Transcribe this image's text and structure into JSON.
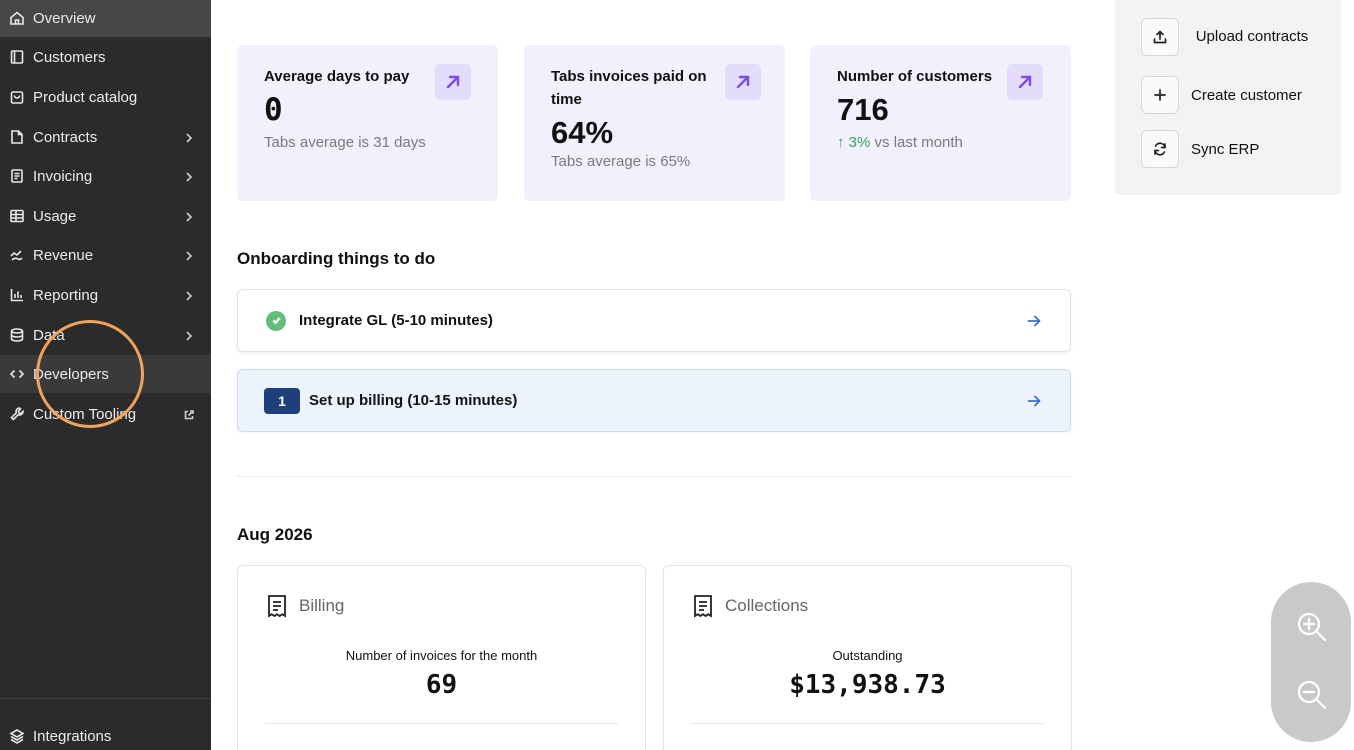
{
  "sidebar": {
    "items": [
      {
        "label": "Overview",
        "icon": "home-icon"
      },
      {
        "label": "Customers",
        "icon": "book-icon"
      },
      {
        "label": "Product catalog",
        "icon": "bag-icon"
      },
      {
        "label": "Contracts",
        "icon": "file-icon"
      },
      {
        "label": "Invoicing",
        "icon": "invoice-icon"
      },
      {
        "label": "Usage",
        "icon": "table-icon"
      },
      {
        "label": "Revenue",
        "icon": "revenue-icon"
      },
      {
        "label": "Reporting",
        "icon": "bar-chart-icon"
      },
      {
        "label": "Data",
        "icon": "database-icon"
      },
      {
        "label": "Developers",
        "icon": "code-icon"
      },
      {
        "label": "Custom Tooling",
        "icon": "wrench-icon"
      }
    ],
    "footer_item": {
      "label": "Integrations",
      "icon": "layers-icon"
    }
  },
  "stats": [
    {
      "title": "Average days to pay",
      "value": "0",
      "sub": "Tabs average is 31 days"
    },
    {
      "title": "Tabs invoices paid on time",
      "value": "64%",
      "sub": "Tabs average is 65%"
    },
    {
      "title": "Number of customers",
      "value": "716",
      "delta": "↑ 3%",
      "sub": " vs last month"
    }
  ],
  "actions": [
    {
      "label": "Upload contracts",
      "icon": "upload-icon"
    },
    {
      "label": "Create customer",
      "icon": "plus-icon"
    },
    {
      "label": "Sync ERP",
      "icon": "sync-icon"
    }
  ],
  "onboarding": {
    "title": "Onboarding things to do",
    "tasks": [
      {
        "label": "Integrate GL (5-10 minutes)",
        "status": "done"
      },
      {
        "step": "1",
        "label": "Set up billing (10-15 minutes)",
        "status": "current"
      }
    ]
  },
  "period": {
    "title": "Aug 2026",
    "billing": {
      "title": "Billing",
      "label": "Number of invoices for the month",
      "value": "69"
    },
    "collections": {
      "title": "Collections",
      "label": "Outstanding",
      "value": "$13,938.73"
    }
  },
  "colors": {
    "sidebar": "#2b2b2b",
    "stat_card": "#f2f0fc",
    "accent": "#7d4ce6",
    "success": "#3aa35a",
    "step_badge": "#1f3f7a"
  }
}
